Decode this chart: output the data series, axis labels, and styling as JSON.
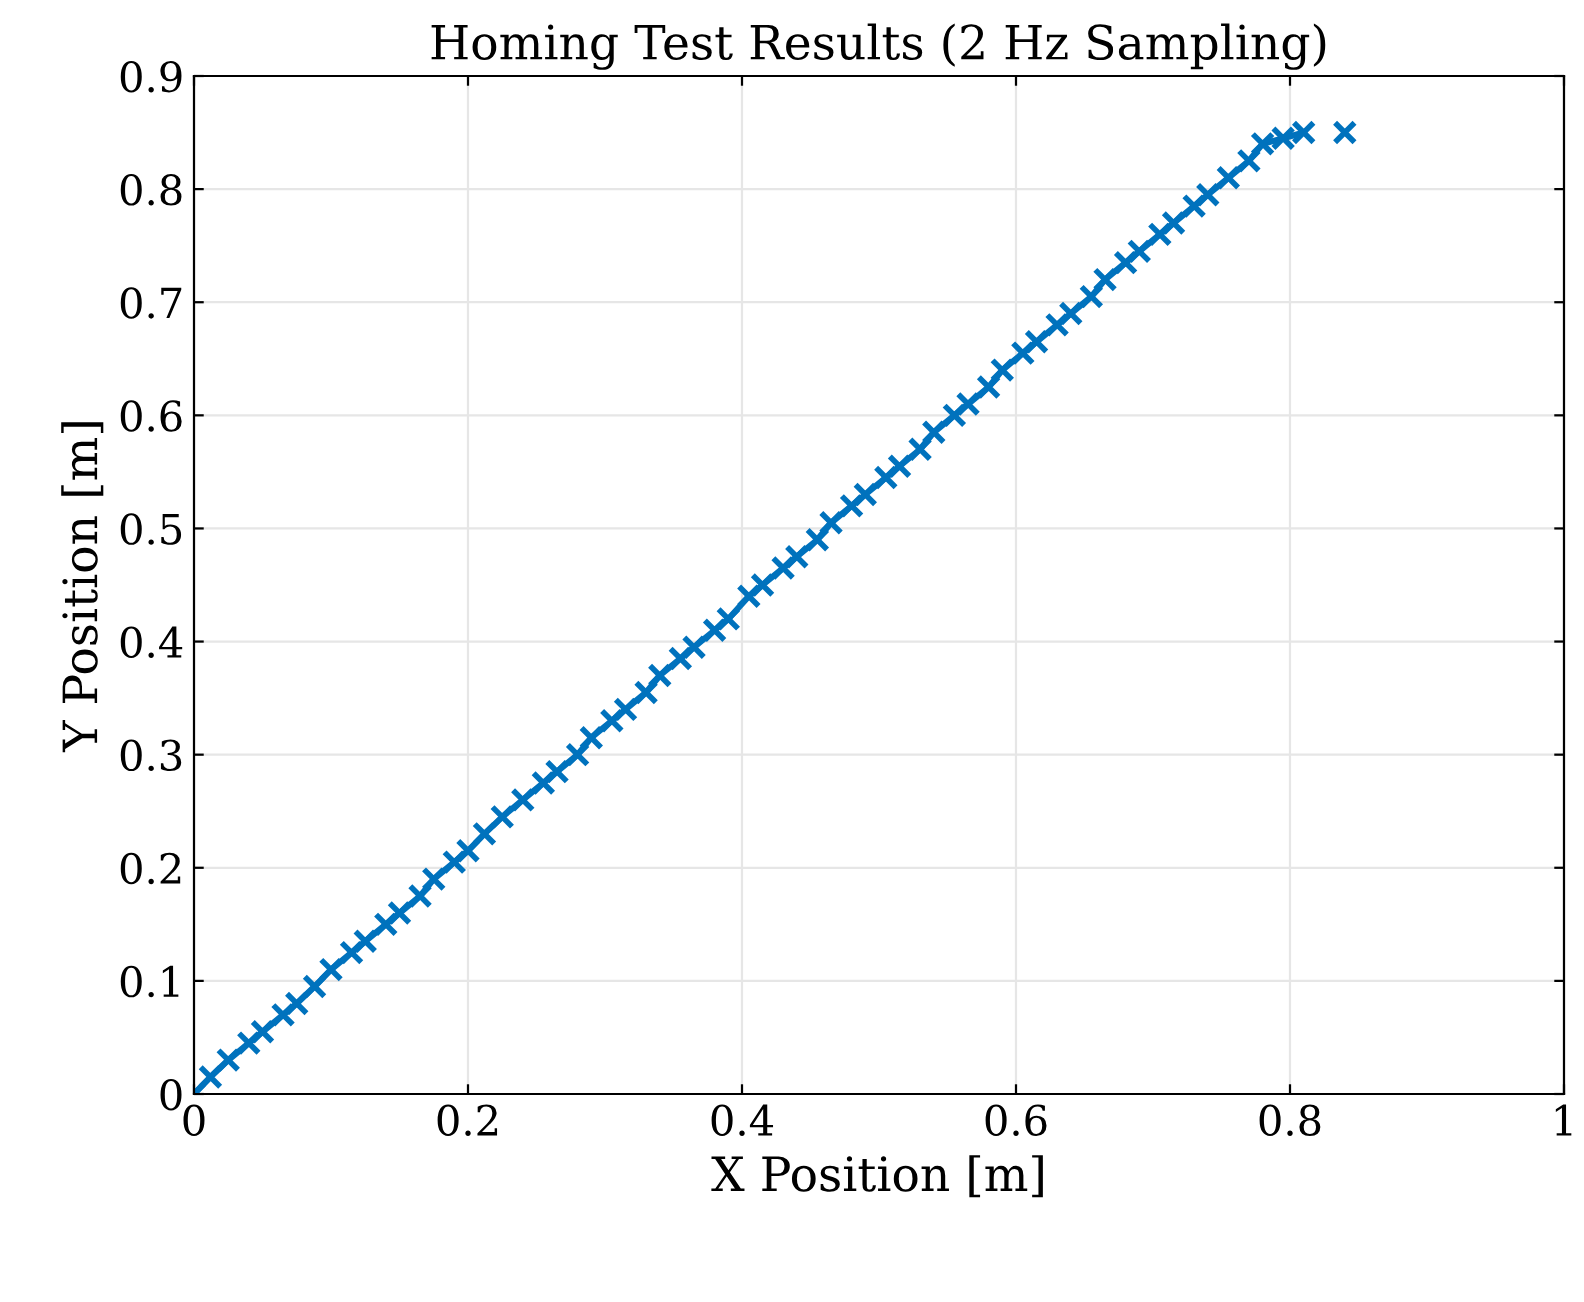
{
  "chart_data": {
    "type": "line",
    "title": "Homing Test Results (2 Hz Sampling)",
    "xlabel": "X Position [m]",
    "ylabel": "Y Position [m]",
    "x": [
      0,
      0.012,
      0.025,
      0.04,
      0.05,
      0.065,
      0.075,
      0.088,
      0.1,
      0.115,
      0.125,
      0.14,
      0.15,
      0.165,
      0.175,
      0.19,
      0.2,
      0.212,
      0.225,
      0.24,
      0.255,
      0.265,
      0.28,
      0.29,
      0.305,
      0.315,
      0.33,
      0.34,
      0.355,
      0.365,
      0.38,
      0.39,
      0.405,
      0.415,
      0.43,
      0.44,
      0.455,
      0.465,
      0.48,
      0.49,
      0.505,
      0.515,
      0.53,
      0.54,
      0.555,
      0.565,
      0.58,
      0.59,
      0.605,
      0.615,
      0.63,
      0.64,
      0.655,
      0.665,
      0.68,
      0.69,
      0.705,
      0.715,
      0.73,
      0.74,
      0.755,
      0.77,
      0.78,
      0.795,
      0.81,
      0.825,
      0.84
    ],
    "series": [
      {
        "color": "#0072bd",
        "values": [
          0,
          0.015,
          0.03,
          0.045,
          0.055,
          0.07,
          0.08,
          0.095,
          0.11,
          0.125,
          0.135,
          0.15,
          0.16,
          0.175,
          0.19,
          0.205,
          0.215,
          0.23,
          0.245,
          0.26,
          0.275,
          0.285,
          0.3,
          0.315,
          0.33,
          0.34,
          0.355,
          0.37,
          0.385,
          0.395,
          0.41,
          0.42,
          0.44,
          0.45,
          0.465,
          0.475,
          0.49,
          0.505,
          0.52,
          0.53,
          0.545,
          0.555,
          0.57,
          0.585,
          0.6,
          0.61,
          0.625,
          0.64,
          0.655,
          0.665,
          0.68,
          0.69,
          0.705,
          0.72,
          0.735,
          0.745,
          0.76,
          0.77,
          0.785,
          0.795,
          0.81,
          0.825,
          0.84,
          0.845,
          0.85,
          null,
          0.85
        ]
      }
    ],
    "xlim": [
      0,
      1
    ],
    "xticks": [
      0,
      0.2,
      0.4,
      0.6,
      0.8,
      1
    ],
    "ylim": [
      0,
      0.9
    ],
    "yticks": [
      0,
      0.1,
      0.2,
      0.3,
      0.4,
      0.5,
      0.6,
      0.7,
      0.8,
      0.9
    ],
    "grid": true,
    "marker": "cross",
    "line_style": "solid"
  }
}
